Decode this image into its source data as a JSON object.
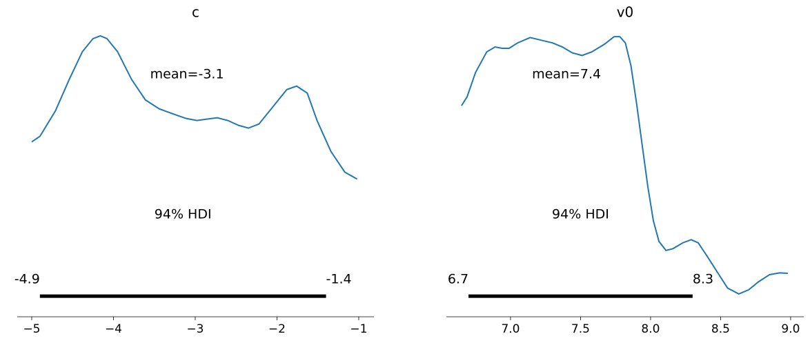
{
  "chart_data": [
    {
      "type": "density",
      "title": "c",
      "color": "#1f77b4",
      "x": [
        -5.0,
        -4.9,
        -4.71,
        -4.54,
        -4.38,
        -4.25,
        -4.16,
        -4.08,
        -3.95,
        -3.78,
        -3.61,
        -3.44,
        -3.28,
        -3.11,
        -2.98,
        -2.86,
        -2.73,
        -2.6,
        -2.47,
        -2.35,
        -2.22,
        -2.05,
        -1.88,
        -1.76,
        -1.63,
        -1.51,
        -1.34,
        -1.17,
        -1.02
      ],
      "values": [
        0.224,
        0.232,
        0.269,
        0.315,
        0.355,
        0.374,
        0.378,
        0.374,
        0.355,
        0.315,
        0.285,
        0.272,
        0.265,
        0.258,
        0.255,
        0.257,
        0.259,
        0.255,
        0.248,
        0.244,
        0.25,
        0.275,
        0.3,
        0.305,
        0.295,
        0.255,
        0.21,
        0.18,
        0.17
      ],
      "mean": {
        "text": "mean=-3.1",
        "x": -3.1
      },
      "hdi": [
        -4.9,
        -1.4
      ],
      "hdi_label": "94% HDI",
      "xlim": [
        -5.177,
        -0.814
      ],
      "ylim": [
        -0.03,
        0.41
      ],
      "xticks": [
        {
          "value": -5,
          "label": "−5"
        },
        {
          "value": -4,
          "label": "−4"
        },
        {
          "value": -3,
          "label": "−3"
        },
        {
          "value": -2,
          "label": "−2"
        },
        {
          "value": -1,
          "label": "−1"
        }
      ]
    },
    {
      "type": "density",
      "title": "v0",
      "color": "#1f77b4",
      "x": [
        6.65,
        6.69,
        6.75,
        6.83,
        6.89,
        6.94,
        6.99,
        7.05,
        7.14,
        7.22,
        7.3,
        7.37,
        7.44,
        7.51,
        7.58,
        7.67,
        7.74,
        7.78,
        7.82,
        7.86,
        7.9,
        7.94,
        7.98,
        8.02,
        8.06,
        8.11,
        8.16,
        8.23,
        8.29,
        8.34,
        8.4,
        8.48,
        8.55,
        8.63,
        8.7,
        8.77,
        8.85,
        8.92,
        8.98
      ],
      "values": [
        0.425,
        0.445,
        0.499,
        0.545,
        0.556,
        0.553,
        0.553,
        0.565,
        0.577,
        0.571,
        0.565,
        0.556,
        0.543,
        0.537,
        0.545,
        0.562,
        0.579,
        0.579,
        0.565,
        0.514,
        0.43,
        0.337,
        0.245,
        0.168,
        0.122,
        0.102,
        0.106,
        0.119,
        0.126,
        0.119,
        0.091,
        0.052,
        0.018,
        0.005,
        0.014,
        0.032,
        0.048,
        0.052,
        0.051
      ],
      "mean": {
        "text": "mean=7.4",
        "x": 7.4
      },
      "hdi": [
        6.7,
        8.3
      ],
      "hdi_label": "94% HDI",
      "xlim": [
        6.542,
        9.094
      ],
      "ylim": [
        -0.046,
        0.63
      ],
      "xticks": [
        {
          "value": 7,
          "label": "7.0"
        },
        {
          "value": 7.5,
          "label": "7.5"
        },
        {
          "value": 8,
          "label": "8.0"
        },
        {
          "value": 8.5,
          "label": "8.5"
        },
        {
          "value": 9,
          "label": "9.0"
        }
      ]
    }
  ]
}
